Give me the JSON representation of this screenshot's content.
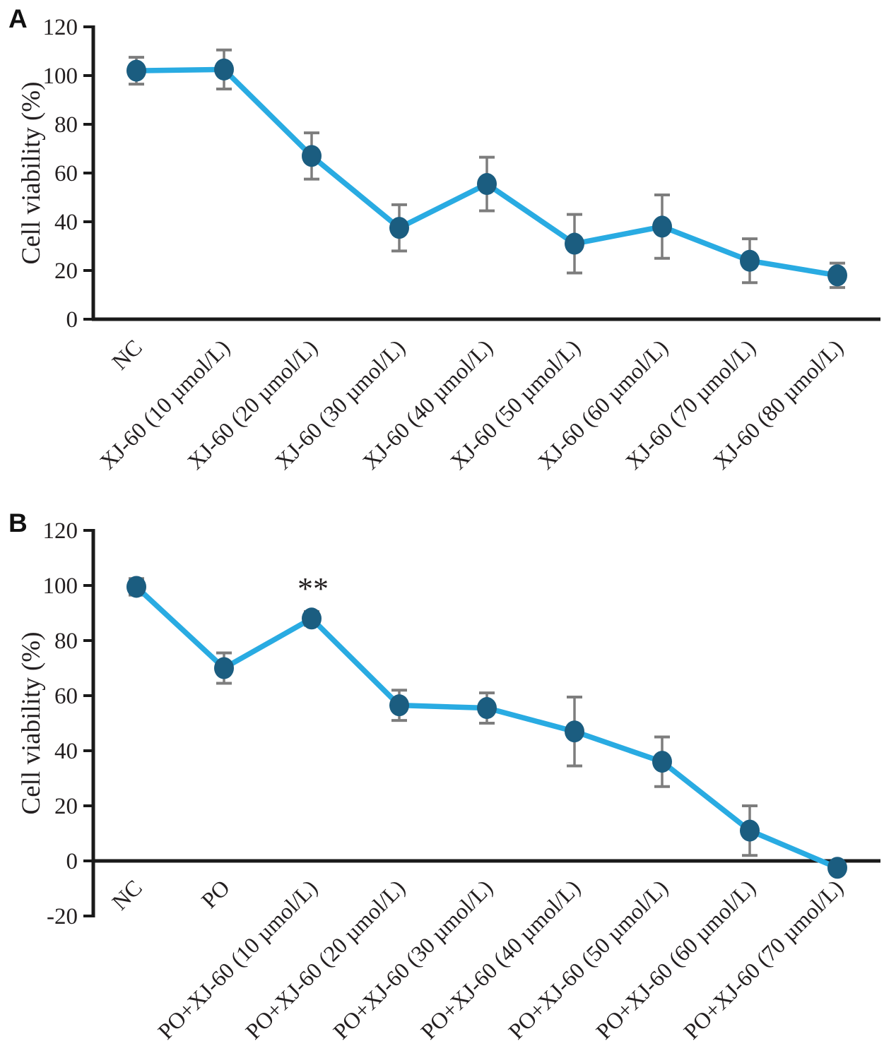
{
  "figure": {
    "panel_a_letter": "A",
    "panel_b_letter": "B"
  },
  "colors": {
    "line": "#29abe2",
    "marker": "#1b5d80",
    "error_bar": "#7d7d7d",
    "axis": "#1a1a1a",
    "text": "#231f20"
  },
  "chart_data": [
    {
      "panel_letter": "A",
      "type": "line",
      "title": "",
      "xlabel": "",
      "ylabel": "Cell viability (%)",
      "ylim": [
        0,
        120
      ],
      "ytick_step": 20,
      "yticks": [
        0,
        20,
        40,
        60,
        80,
        100,
        120
      ],
      "grid": false,
      "legend": "none",
      "categories": [
        "NC",
        "XJ-60 (10 µmol/L)",
        "XJ-60 (20 µmol/L)",
        "XJ-60 (30 µmol/L)",
        "XJ-60 (40 µmol/L)",
        "XJ-60 (50 µmol/L)",
        "XJ-60 (60 µmol/L)",
        "XJ-60 (70 µmol/L)",
        "XJ-60 (80 µmol/L)"
      ],
      "values": [
        102,
        102.5,
        67,
        37.5,
        55.5,
        31,
        38,
        24,
        18
      ],
      "errors": [
        5.5,
        8,
        9.5,
        9.5,
        11,
        12,
        13,
        9,
        5
      ],
      "annotations": []
    },
    {
      "panel_letter": "B",
      "type": "line",
      "title": "",
      "xlabel": "",
      "ylabel": "Cell viability (%)",
      "ylim": [
        -20,
        120
      ],
      "ytick_step": 20,
      "yticks": [
        -20,
        0,
        20,
        40,
        60,
        80,
        100,
        120
      ],
      "grid": false,
      "legend": "none",
      "categories": [
        "NC",
        "PO",
        "PO+XJ-60 (10 µmol/L)",
        "PO+XJ-60 (20 µmol/L)",
        "PO+XJ-60 (30 µmol/L)",
        "PO+XJ-60 (40 µmol/L)",
        "PO+XJ-60 (50 µmol/L)",
        "PO+XJ-60 (60 µmol/L)",
        "PO+XJ-60 (70 µmol/L)"
      ],
      "values": [
        99.5,
        70,
        88,
        56.5,
        55.5,
        47,
        36,
        11,
        -2.5
      ],
      "errors": [
        3,
        5.5,
        2.5,
        5.5,
        5.5,
        12.5,
        9,
        9,
        1.5
      ],
      "annotations": [
        {
          "text": "**",
          "index": 2
        }
      ]
    }
  ]
}
